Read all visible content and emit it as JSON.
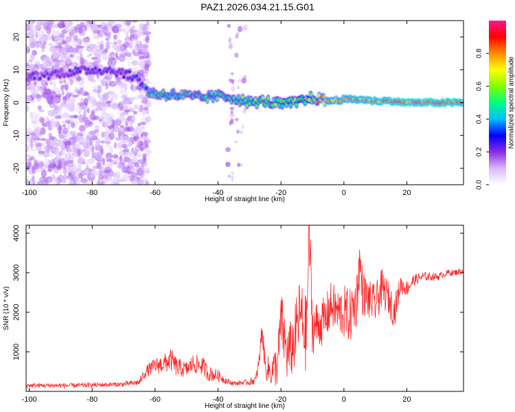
{
  "title": "PAZ1.2026.034.21.15.G01",
  "chart_data": [
    {
      "type": "heatmap",
      "name": "spectrogram",
      "xlabel": "Height of straight line (km)",
      "ylabel": "Frequency (Hz)",
      "xlim": [
        -101,
        38
      ],
      "ylim": [
        -25,
        25
      ],
      "xticks": [
        -100,
        -80,
        -60,
        -40,
        -20,
        0,
        20
      ],
      "yticks": [
        -20,
        -10,
        0,
        10,
        20
      ],
      "colorbar": {
        "label": "Normalized spectral amplitude",
        "range": [
          0,
          1
        ],
        "ticks": [
          "0.0",
          "0.2",
          "0.4",
          "0.6",
          "0.8"
        ],
        "colormap": [
          "#ffffff",
          "#d8b8ff",
          "#8a2be2",
          "#0000ff",
          "#00bfff",
          "#00ff7f",
          "#7fff00",
          "#ffff00",
          "#ff8c00",
          "#ff0000",
          "#ff1493"
        ]
      },
      "ridge": {
        "description": "dominant frequency track",
        "x": [
          -101,
          -95,
          -90,
          -85,
          -80,
          -75,
          -70,
          -65,
          -62,
          -58,
          -55,
          -50,
          -45,
          -40,
          -35,
          -30,
          -25,
          -20,
          -15,
          -10,
          -5,
          0,
          5,
          10,
          15,
          20,
          25,
          30,
          38
        ],
        "freq": [
          8,
          8.5,
          9,
          9.5,
          10,
          10,
          9,
          7,
          3,
          2.5,
          2.5,
          2,
          1.5,
          2,
          1.5,
          0,
          0.5,
          -0.5,
          0,
          1.5,
          0.5,
          1,
          1,
          0.5,
          0.5,
          0,
          0,
          0,
          0
        ],
        "amplitude": [
          0.2,
          0.22,
          0.22,
          0.25,
          0.25,
          0.25,
          0.25,
          0.3,
          0.45,
          0.5,
          0.5,
          0.45,
          0.45,
          0.5,
          0.5,
          0.55,
          0.55,
          0.55,
          0.6,
          0.7,
          0.85,
          0.85,
          0.9,
          0.9,
          0.95,
          0.95,
          0.95,
          0.95,
          0.95
        ]
      },
      "noise_region": {
        "x": [
          -101,
          -62
        ],
        "freq": [
          -25,
          25
        ],
        "amplitude": 0.12
      }
    },
    {
      "type": "line",
      "name": "snr",
      "xlabel": "Height of straight line (km)",
      "ylabel": "SNR (10 * v/v)",
      "xlim": [
        -101,
        38
      ],
      "ylim": [
        0,
        4200
      ],
      "xticks": [
        -100,
        -80,
        -60,
        -40,
        -20,
        0,
        20
      ],
      "yticks": [
        1000,
        2000,
        3000,
        4000
      ],
      "color": "#ff2222",
      "series": [
        {
          "name": "SNR",
          "x": [
            -101,
            -95,
            -90,
            -85,
            -80,
            -75,
            -70,
            -65,
            -63,
            -60,
            -57,
            -55,
            -53,
            -50,
            -48,
            -45,
            -43,
            -40,
            -37,
            -35,
            -32,
            -30,
            -28,
            -27,
            -26,
            -25,
            -23,
            -21,
            -20,
            -18,
            -16,
            -14,
            -12,
            -11,
            -10,
            -8,
            -6,
            -4,
            -2,
            0,
            2,
            4,
            5,
            6,
            8,
            10,
            12,
            14,
            16,
            18,
            20,
            22,
            25,
            28,
            30,
            33,
            35,
            38
          ],
          "y": [
            150,
            150,
            150,
            150,
            160,
            170,
            180,
            230,
            500,
            650,
            700,
            800,
            600,
            550,
            700,
            650,
            450,
            400,
            250,
            200,
            220,
            230,
            300,
            700,
            1600,
            600,
            500,
            700,
            1800,
            900,
            1200,
            2000,
            1400,
            4000,
            1600,
            1700,
            1800,
            2200,
            2000,
            2000,
            1900,
            2300,
            3300,
            2500,
            2300,
            2200,
            2600,
            2400,
            2000,
            2700,
            2600,
            2800,
            2900,
            2900,
            2900,
            3000,
            3000,
            3050
          ],
          "noise_amplitude": [
            60,
            60,
            60,
            60,
            60,
            60,
            60,
            80,
            150,
            200,
            250,
            300,
            250,
            200,
            250,
            250,
            200,
            150,
            80,
            60,
            60,
            80,
            120,
            250,
            300,
            300,
            400,
            600,
            800,
            700,
            800,
            900,
            1000,
            900,
            700,
            600,
            600,
            600,
            600,
            700,
            700,
            700,
            600,
            600,
            500,
            500,
            500,
            450,
            400,
            250,
            200,
            150,
            120,
            100,
            90,
            80,
            80,
            80
          ]
        }
      ]
    }
  ]
}
